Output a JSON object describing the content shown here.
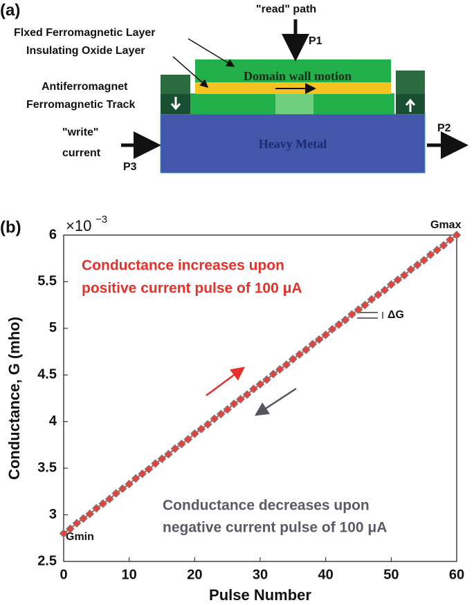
{
  "panel_a": {
    "label": "(a)",
    "read_path": "\"read\" path",
    "p1": "P1",
    "fixed_layer": "Flxed Ferromagnetic Layer",
    "oxide_layer": "Insulating Oxide Layer",
    "antiferromagnet": "Antiferromagnet",
    "track": "Ferromagnetic Track",
    "domain_wall": "Domain wall motion",
    "write_1": "\"write\"",
    "write_2": "current",
    "p3": "P3",
    "heavy_metal": "Heavy Metal",
    "p2": "P2"
  },
  "chart_data": {
    "type": "line",
    "panel_label": "(b)",
    "y_multiplier": "×10",
    "y_multiplier_exponent": "−3",
    "x_label": "Pulse Number",
    "y_label": "Conductance, G (mho)",
    "annotations": {
      "increase_1": "Conductance increases upon",
      "increase_2": "positive current pulse of 100 μA",
      "decrease_1": "Conductance decreases upon",
      "decrease_2": "negative current pulse of 100 μA",
      "delta_g": "ΔG",
      "gmin": "Gmin",
      "gmax": "Gmax"
    },
    "color": "#e8413b",
    "marker_edge": "#7a7a7a",
    "x": [
      0,
      1,
      2,
      3,
      4,
      5,
      6,
      7,
      8,
      9,
      10,
      11,
      12,
      13,
      14,
      15,
      16,
      17,
      18,
      19,
      20,
      21,
      22,
      23,
      24,
      25,
      26,
      27,
      28,
      29,
      30,
      31,
      32,
      33,
      34,
      35,
      36,
      37,
      38,
      39,
      40,
      41,
      42,
      43,
      44,
      45,
      46,
      47,
      48,
      49,
      50,
      51,
      52,
      53,
      54,
      55,
      56,
      57,
      58,
      59,
      60
    ],
    "values": [
      2.8,
      2.85,
      2.91,
      2.96,
      3.01,
      3.07,
      3.12,
      3.17,
      3.23,
      3.28,
      3.33,
      3.39,
      3.44,
      3.49,
      3.55,
      3.6,
      3.65,
      3.71,
      3.76,
      3.81,
      3.87,
      3.92,
      3.97,
      4.03,
      4.08,
      4.13,
      4.19,
      4.24,
      4.29,
      4.35,
      4.4,
      4.45,
      4.51,
      4.56,
      4.61,
      4.67,
      4.72,
      4.77,
      4.83,
      4.88,
      4.93,
      4.99,
      5.04,
      5.09,
      5.15,
      5.2,
      5.25,
      5.31,
      5.36,
      5.41,
      5.47,
      5.52,
      5.57,
      5.63,
      5.68,
      5.73,
      5.79,
      5.84,
      5.89,
      5.95,
      6.0
    ],
    "xlim": [
      0,
      60
    ],
    "xticks": [
      0,
      10,
      20,
      30,
      40,
      50,
      60
    ],
    "ylim": [
      2.5,
      6
    ],
    "yticks": [
      2.5,
      3,
      3.5,
      4,
      4.5,
      5,
      5.5,
      6
    ],
    "grid": false
  }
}
